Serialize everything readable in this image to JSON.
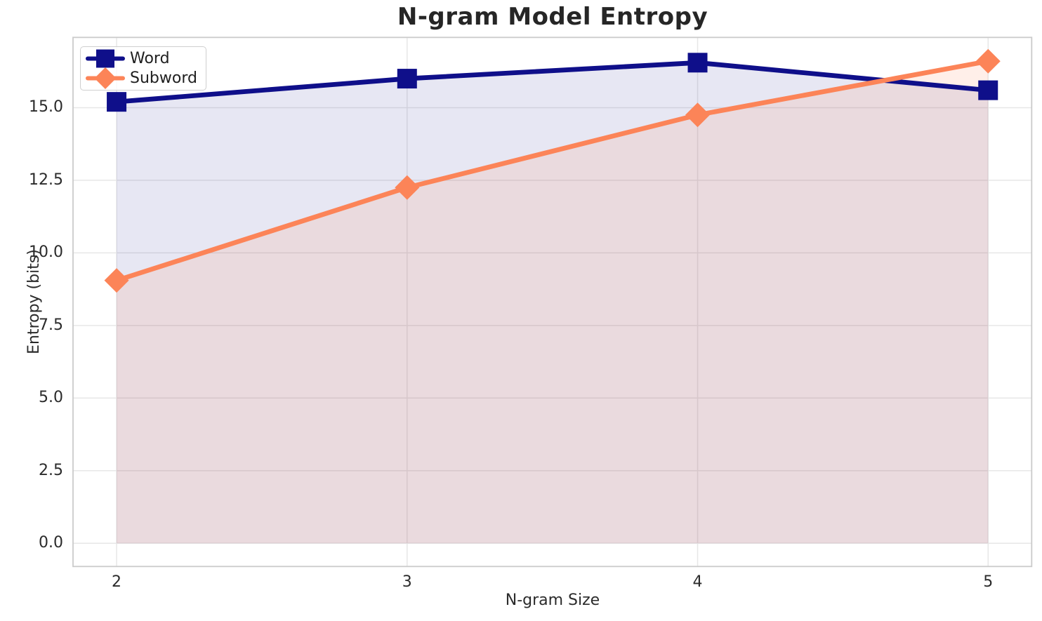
{
  "chart_data": {
    "type": "line",
    "title": "N-gram Model Entropy",
    "xlabel": "N-gram Size",
    "ylabel": "Entropy (bits)",
    "x": [
      2,
      3,
      4,
      5
    ],
    "x_tick_labels": [
      "2",
      "3",
      "4",
      "5"
    ],
    "y_tick_values": [
      0,
      2.5,
      5,
      7.5,
      10,
      12.5,
      15
    ],
    "y_tick_labels": [
      "0.0",
      "2.5",
      "5.0",
      "7.5",
      "10.0",
      "12.5",
      "15.0"
    ],
    "xlim": [
      1.85,
      5.15
    ],
    "ylim": [
      -0.8,
      17.42
    ],
    "grid": true,
    "legend_position": "upper left",
    "series": [
      {
        "name": "Word",
        "marker": "square",
        "color": "#0f0f8a",
        "fill": "rgba(15,15,138,0.10)",
        "values": [
          15.2,
          16.0,
          16.55,
          15.6
        ]
      },
      {
        "name": "Subword",
        "marker": "diamond",
        "color": "#fc8458",
        "fill": "rgba(252,132,88,0.13)",
        "values": [
          9.05,
          12.25,
          14.75,
          16.6
        ]
      }
    ]
  },
  "style_colors": {
    "grid": "#e7e7e7",
    "spine": "#cbcbcb",
    "title_text": "#262626",
    "tick_text": "#2b2b2b",
    "background": "#ffffff"
  }
}
